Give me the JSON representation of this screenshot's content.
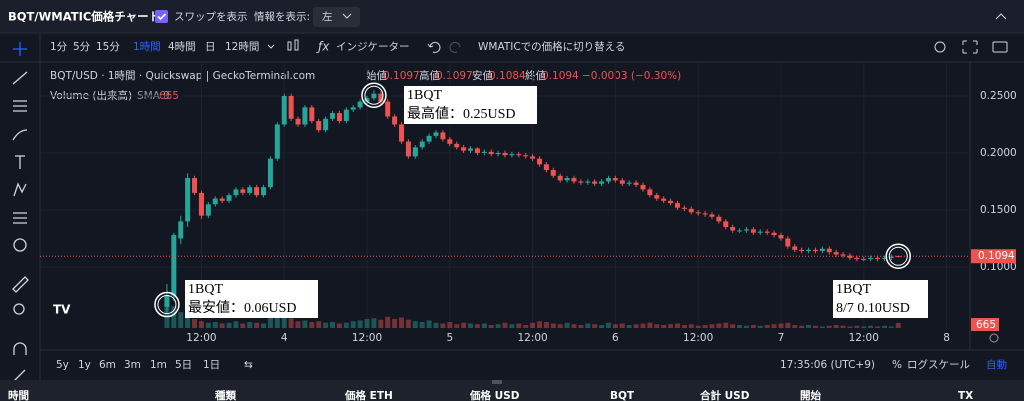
{
  "header": {
    "title": "BQT/WMATIC価格チャート",
    "swap_toggle": "スワップを表示",
    "info_label": "情報を表示:",
    "info_select": "左"
  },
  "toolbar": {
    "intervals": [
      "1分",
      "5分",
      "15分",
      "1時間",
      "4時間",
      "日",
      "12時間"
    ],
    "indicators": "インジケーター",
    "switch": "WMATICでの価格に切り替える"
  },
  "legend": {
    "title": "BQT/USD · 1時間 · Quickswap | GeckoTerminal.com",
    "ohlc": [
      {
        "name": "始値",
        "value": 0.1097
      },
      {
        "name": "高値",
        "value": 0.1097
      },
      {
        "name": "安値",
        "value": 0.1084
      },
      {
        "name": "終値",
        "value": 0.1094
      }
    ],
    "change": "−0.0003 (−0.30%)",
    "volume": "Volume (出来高)",
    "sma": "SMA 9",
    "volume_value": 665
  },
  "chart_data": {
    "type": "candlestick",
    "up_color": "#26a69a",
    "down_color": "#ef5350",
    "ylim": [
      0.0447,
      0.2798
    ],
    "yticks": [
      {
        "value": 0.1,
        "label": "0.1000"
      },
      {
        "value": 0.15,
        "label": "0.1500"
      },
      {
        "value": 0.2,
        "label": "0.2000"
      },
      {
        "value": 0.25,
        "label": "0.2500"
      }
    ],
    "xlim": [
      -18.4,
      116.4
    ],
    "xticks": [
      {
        "value": 5,
        "label": "12:00"
      },
      {
        "value": 17,
        "label": "4"
      },
      {
        "value": 29,
        "label": "12:00"
      },
      {
        "value": 41,
        "label": "5"
      },
      {
        "value": 53,
        "label": "12:00"
      },
      {
        "value": 65,
        "label": "6"
      },
      {
        "value": 77,
        "label": "12:00"
      },
      {
        "value": 89,
        "label": "7"
      },
      {
        "value": 101,
        "label": "12:00"
      },
      {
        "value": 113,
        "label": "8"
      }
    ],
    "grid": true,
    "candles": [
      [
        0.065,
        0.085,
        0.06,
        0.075
      ],
      [
        0.075,
        0.13,
        0.07,
        0.128
      ],
      [
        0.125,
        0.145,
        0.12,
        0.14
      ],
      [
        0.14,
        0.182,
        0.135,
        0.178
      ],
      [
        0.178,
        0.18,
        0.163,
        0.165
      ],
      [
        0.165,
        0.167,
        0.142,
        0.145
      ],
      [
        0.145,
        0.157,
        0.143,
        0.155
      ],
      [
        0.155,
        0.162,
        0.153,
        0.16
      ],
      [
        0.16,
        0.162,
        0.156,
        0.158
      ],
      [
        0.158,
        0.165,
        0.156,
        0.163
      ],
      [
        0.163,
        0.17,
        0.161,
        0.168
      ],
      [
        0.168,
        0.17,
        0.163,
        0.165
      ],
      [
        0.165,
        0.172,
        0.163,
        0.17
      ],
      [
        0.17,
        0.172,
        0.161,
        0.163
      ],
      [
        0.163,
        0.172,
        0.161,
        0.17
      ],
      [
        0.17,
        0.197,
        0.168,
        0.195
      ],
      [
        0.195,
        0.227,
        0.193,
        0.225
      ],
      [
        0.225,
        0.252,
        0.223,
        0.25
      ],
      [
        0.25,
        0.252,
        0.228,
        0.23
      ],
      [
        0.23,
        0.232,
        0.223,
        0.225
      ],
      [
        0.225,
        0.242,
        0.223,
        0.24
      ],
      [
        0.24,
        0.242,
        0.226,
        0.228
      ],
      [
        0.228,
        0.23,
        0.218,
        0.22
      ],
      [
        0.22,
        0.232,
        0.218,
        0.23
      ],
      [
        0.23,
        0.237,
        0.228,
        0.235
      ],
      [
        0.235,
        0.237,
        0.226,
        0.228
      ],
      [
        0.228,
        0.24,
        0.226,
        0.238
      ],
      [
        0.238,
        0.242,
        0.236,
        0.24
      ],
      [
        0.24,
        0.247,
        0.238,
        0.245
      ],
      [
        0.245,
        0.25,
        0.243,
        0.248
      ],
      [
        0.248,
        0.255,
        0.246,
        0.252
      ],
      [
        0.252,
        0.254,
        0.243,
        0.245
      ],
      [
        0.245,
        0.247,
        0.23,
        0.232
      ],
      [
        0.232,
        0.234,
        0.223,
        0.225
      ],
      [
        0.225,
        0.227,
        0.208,
        0.21
      ],
      [
        0.21,
        0.212,
        0.195,
        0.197
      ],
      [
        0.197,
        0.207,
        0.195,
        0.205
      ],
      [
        0.205,
        0.212,
        0.203,
        0.21
      ],
      [
        0.21,
        0.217,
        0.208,
        0.215
      ],
      [
        0.215,
        0.22,
        0.213,
        0.218
      ],
      [
        0.218,
        0.22,
        0.21,
        0.212
      ],
      [
        0.212,
        0.214,
        0.206,
        0.208
      ],
      [
        0.208,
        0.21,
        0.203,
        0.205
      ],
      [
        0.205,
        0.207,
        0.2,
        0.202
      ],
      [
        0.202,
        0.206,
        0.2,
        0.204
      ],
      [
        0.204,
        0.205,
        0.198,
        0.2
      ],
      [
        0.2,
        0.203,
        0.198,
        0.201
      ],
      [
        0.201,
        0.203,
        0.197,
        0.199
      ],
      [
        0.199,
        0.202,
        0.197,
        0.2
      ],
      [
        0.2,
        0.202,
        0.196,
        0.198
      ],
      [
        0.198,
        0.201,
        0.196,
        0.199
      ],
      [
        0.199,
        0.201,
        0.196,
        0.198
      ],
      [
        0.198,
        0.2,
        0.195,
        0.197
      ],
      [
        0.197,
        0.199,
        0.193,
        0.195
      ],
      [
        0.195,
        0.197,
        0.188,
        0.19
      ],
      [
        0.19,
        0.192,
        0.183,
        0.185
      ],
      [
        0.185,
        0.187,
        0.178,
        0.18
      ],
      [
        0.18,
        0.182,
        0.174,
        0.176
      ],
      [
        0.176,
        0.18,
        0.174,
        0.178
      ],
      [
        0.178,
        0.18,
        0.173,
        0.175
      ],
      [
        0.175,
        0.177,
        0.172,
        0.174
      ],
      [
        0.174,
        0.177,
        0.172,
        0.175
      ],
      [
        0.175,
        0.177,
        0.171,
        0.173
      ],
      [
        0.173,
        0.177,
        0.171,
        0.175
      ],
      [
        0.175,
        0.18,
        0.173,
        0.178
      ],
      [
        0.178,
        0.18,
        0.174,
        0.176
      ],
      [
        0.176,
        0.178,
        0.171,
        0.173
      ],
      [
        0.173,
        0.176,
        0.171,
        0.174
      ],
      [
        0.174,
        0.176,
        0.17,
        0.172
      ],
      [
        0.172,
        0.174,
        0.166,
        0.168
      ],
      [
        0.168,
        0.17,
        0.161,
        0.163
      ],
      [
        0.163,
        0.165,
        0.158,
        0.16
      ],
      [
        0.16,
        0.162,
        0.156,
        0.158
      ],
      [
        0.158,
        0.16,
        0.154,
        0.156
      ],
      [
        0.156,
        0.158,
        0.15,
        0.152
      ],
      [
        0.152,
        0.154,
        0.149,
        0.151
      ],
      [
        0.151,
        0.153,
        0.146,
        0.148
      ],
      [
        0.148,
        0.15,
        0.145,
        0.147
      ],
      [
        0.147,
        0.149,
        0.144,
        0.146
      ],
      [
        0.146,
        0.148,
        0.142,
        0.144
      ],
      [
        0.144,
        0.146,
        0.138,
        0.14
      ],
      [
        0.14,
        0.142,
        0.133,
        0.135
      ],
      [
        0.135,
        0.137,
        0.13,
        0.132
      ],
      [
        0.132,
        0.134,
        0.13,
        0.132
      ],
      [
        0.132,
        0.135,
        0.13,
        0.133
      ],
      [
        0.133,
        0.135,
        0.128,
        0.13
      ],
      [
        0.13,
        0.133,
        0.128,
        0.131
      ],
      [
        0.131,
        0.133,
        0.128,
        0.13
      ],
      [
        0.13,
        0.132,
        0.126,
        0.128
      ],
      [
        0.128,
        0.13,
        0.123,
        0.125
      ],
      [
        0.125,
        0.127,
        0.116,
        0.118
      ],
      [
        0.118,
        0.12,
        0.113,
        0.115
      ],
      [
        0.115,
        0.117,
        0.112,
        0.114
      ],
      [
        0.114,
        0.117,
        0.112,
        0.115
      ],
      [
        0.115,
        0.117,
        0.112,
        0.114
      ],
      [
        0.114,
        0.118,
        0.112,
        0.116
      ],
      [
        0.116,
        0.118,
        0.111,
        0.113
      ],
      [
        0.113,
        0.115,
        0.109,
        0.111
      ],
      [
        0.111,
        0.113,
        0.108,
        0.11
      ],
      [
        0.11,
        0.112,
        0.106,
        0.108
      ],
      [
        0.108,
        0.11,
        0.105,
        0.107
      ],
      [
        0.107,
        0.109,
        0.105,
        0.107
      ],
      [
        0.107,
        0.11,
        0.105,
        0.108
      ],
      [
        0.108,
        0.11,
        0.105,
        0.107
      ],
      [
        0.107,
        0.11,
        0.105,
        0.108
      ],
      [
        0.108,
        0.111,
        0.106,
        0.109
      ],
      [
        0.1097,
        0.1097,
        0.1084,
        0.1094
      ]
    ],
    "volume_lim": [
      0,
      4000
    ],
    "volumes": [
      3200,
      2900,
      2100,
      1600,
      1200,
      900,
      700,
      800,
      600,
      700,
      900,
      600,
      800,
      700,
      600,
      1400,
      1700,
      1500,
      1300,
      900,
      1000,
      800,
      900,
      700,
      800,
      600,
      700,
      900,
      1000,
      1200,
      1300,
      1100,
      1500,
      1200,
      1400,
      1100,
      900,
      800,
      1000,
      700,
      600,
      800,
      500,
      700,
      600,
      500,
      600,
      400,
      500,
      700,
      500,
      600,
      400,
      700,
      900,
      800,
      600,
      500,
      700,
      500,
      400,
      600,
      500,
      400,
      700,
      500,
      600,
      400,
      500,
      600,
      700,
      500,
      400,
      500,
      600,
      400,
      500,
      300,
      400,
      500,
      600,
      700,
      500,
      400,
      300,
      400,
      300,
      400,
      500,
      600,
      700,
      400,
      300,
      400,
      300,
      200,
      300,
      400,
      300,
      200,
      300,
      200,
      300,
      200,
      300,
      200,
      665
    ],
    "annotations": [
      {
        "lines": [
          "1BQT",
          "最高値：0.25USD"
        ]
      },
      {
        "lines": [
          "1BQT",
          "最安値：0.06USD"
        ]
      },
      {
        "lines": [
          "1BQT",
          "8/7 0.10USD"
        ]
      }
    ]
  },
  "ranges": [
    "5y",
    "1y",
    "6m",
    "3m",
    "1m",
    "5日",
    "1日"
  ],
  "clock": "17:35:06 (UTC+9)",
  "percent": "%",
  "log": "ログスケール",
  "auto": "自動",
  "table": {
    "columns": [
      "時間",
      "種類",
      "価格 ETH",
      "価格 USD",
      "BQT",
      "合計 USD",
      "開始",
      "TX"
    ]
  }
}
